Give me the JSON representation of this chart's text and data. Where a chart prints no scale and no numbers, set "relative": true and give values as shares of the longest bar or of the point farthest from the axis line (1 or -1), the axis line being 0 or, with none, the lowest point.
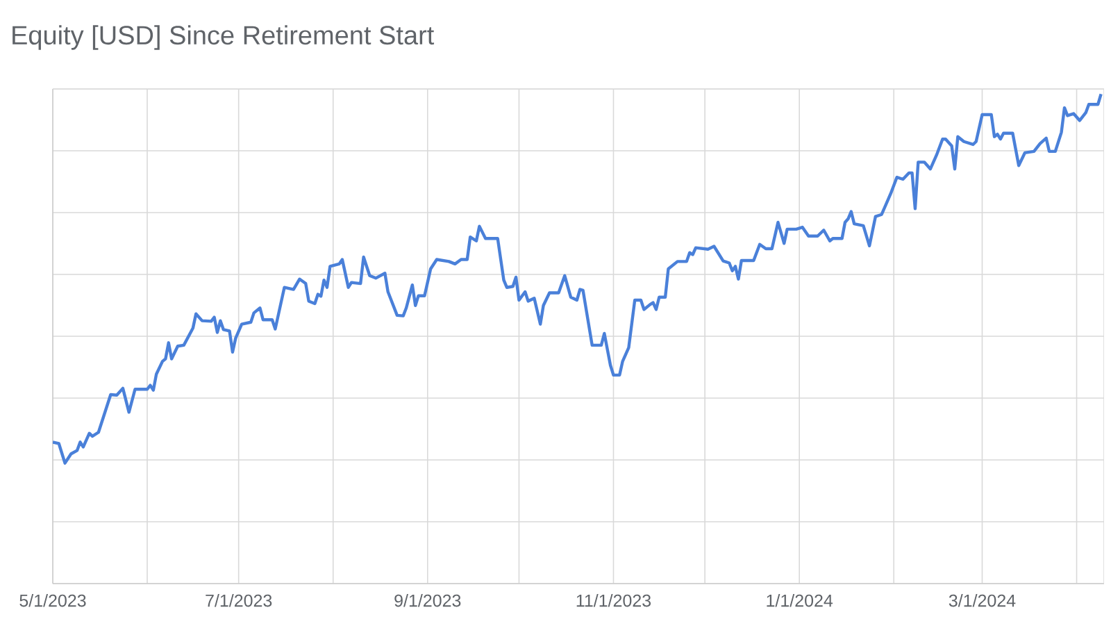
{
  "chart_data": {
    "type": "line",
    "title": "Equity [USD] Since Retirement Start",
    "relative": true,
    "grid": true,
    "color": "#4a80d9",
    "xlim": [
      "2023-05-01",
      "2024-04-10"
    ],
    "xticks": [
      {
        "value": "2023-05-01",
        "label": "5/1/2023"
      },
      {
        "value": "2023-06-01",
        "label": null
      },
      {
        "value": "2023-07-01",
        "label": "7/1/2023"
      },
      {
        "value": "2023-08-01",
        "label": null
      },
      {
        "value": "2023-09-01",
        "label": "9/1/2023"
      },
      {
        "value": "2023-10-01",
        "label": null
      },
      {
        "value": "2023-11-01",
        "label": "11/1/2023"
      },
      {
        "value": "2023-12-01",
        "label": null
      },
      {
        "value": "2024-01-01",
        "label": "1/1/2024"
      },
      {
        "value": "2024-02-01",
        "label": null
      },
      {
        "value": "2024-03-01",
        "label": "3/1/2024"
      },
      {
        "value": "2024-04-01",
        "label": null
      }
    ],
    "x": [
      "2023-05-01",
      "2023-05-03",
      "2023-05-05",
      "2023-05-07",
      "2023-05-09",
      "2023-05-10",
      "2023-05-11",
      "2023-05-13",
      "2023-05-14",
      "2023-05-16",
      "2023-05-20",
      "2023-05-22",
      "2023-05-24",
      "2023-05-26",
      "2023-05-28",
      "2023-06-01",
      "2023-06-02",
      "2023-06-03",
      "2023-06-04",
      "2023-06-06",
      "2023-06-07",
      "2023-06-08",
      "2023-06-09",
      "2023-06-11",
      "2023-06-13",
      "2023-06-16",
      "2023-06-17",
      "2023-06-19",
      "2023-06-22",
      "2023-06-23",
      "2023-06-24",
      "2023-06-25",
      "2023-06-26",
      "2023-06-28",
      "2023-06-29",
      "2023-06-30",
      "2023-07-02",
      "2023-07-05",
      "2023-07-06",
      "2023-07-08",
      "2023-07-09",
      "2023-07-12",
      "2023-07-13",
      "2023-07-16",
      "2023-07-19",
      "2023-07-21",
      "2023-07-23",
      "2023-07-24",
      "2023-07-26",
      "2023-07-27",
      "2023-07-28",
      "2023-07-29",
      "2023-07-30",
      "2023-07-31",
      "2023-08-03",
      "2023-08-04",
      "2023-08-06",
      "2023-08-07",
      "2023-08-10",
      "2023-08-11",
      "2023-08-13",
      "2023-08-15",
      "2023-08-18",
      "2023-08-19",
      "2023-08-22",
      "2023-08-24",
      "2023-08-25",
      "2023-08-27",
      "2023-08-28",
      "2023-08-29",
      "2023-08-31",
      "2023-09-02",
      "2023-09-04",
      "2023-09-08",
      "2023-09-10",
      "2023-09-12",
      "2023-09-14",
      "2023-09-15",
      "2023-09-17",
      "2023-09-18",
      "2023-09-20",
      "2023-09-24",
      "2023-09-26",
      "2023-09-27",
      "2023-09-29",
      "2023-09-30",
      "2023-10-01",
      "2023-10-03",
      "2023-10-04",
      "2023-10-06",
      "2023-10-08",
      "2023-10-09",
      "2023-10-11",
      "2023-10-14",
      "2023-10-16",
      "2023-10-18",
      "2023-10-20",
      "2023-10-21",
      "2023-10-22",
      "2023-10-25",
      "2023-10-28",
      "2023-10-29",
      "2023-10-31",
      "2023-11-01",
      "2023-11-03",
      "2023-11-04",
      "2023-11-06",
      "2023-11-08",
      "2023-11-10",
      "2023-11-11",
      "2023-11-13",
      "2023-11-14",
      "2023-11-15",
      "2023-11-16",
      "2023-11-18",
      "2023-11-19",
      "2023-11-22",
      "2023-11-25",
      "2023-11-26",
      "2023-11-27",
      "2023-11-28",
      "2023-12-02",
      "2023-12-04",
      "2023-12-07",
      "2023-12-09",
      "2023-12-10",
      "2023-12-11",
      "2023-12-12",
      "2023-12-13",
      "2023-12-17",
      "2023-12-19",
      "2023-12-21",
      "2023-12-23",
      "2023-12-25",
      "2023-12-27",
      "2023-12-28",
      "2023-12-31",
      "2024-01-02",
      "2024-01-04",
      "2024-01-07",
      "2024-01-09",
      "2024-01-11",
      "2024-01-12",
      "2024-01-15",
      "2024-01-16",
      "2024-01-17",
      "2024-01-18",
      "2024-01-19",
      "2024-01-22",
      "2024-01-24",
      "2024-01-26",
      "2024-01-28",
      "2024-01-31",
      "2024-02-02",
      "2024-02-04",
      "2024-02-06",
      "2024-02-07",
      "2024-02-08",
      "2024-02-09",
      "2024-02-11",
      "2024-02-13",
      "2024-02-15",
      "2024-02-17",
      "2024-02-18",
      "2024-02-20",
      "2024-02-21",
      "2024-02-22",
      "2024-02-24",
      "2024-02-27",
      "2024-02-28",
      "2024-03-01",
      "2024-03-04",
      "2024-03-05",
      "2024-03-06",
      "2024-03-07",
      "2024-03-08",
      "2024-03-11",
      "2024-03-13",
      "2024-03-15",
      "2024-03-18",
      "2024-03-20",
      "2024-03-22",
      "2024-03-23",
      "2024-03-25",
      "2024-03-27",
      "2024-03-28",
      "2024-03-29",
      "2024-03-31",
      "2024-04-02",
      "2024-04-04",
      "2024-04-05",
      "2024-04-08",
      "2024-04-09"
    ],
    "values": [
      0.289,
      0.286,
      0.246,
      0.265,
      0.272,
      0.289,
      0.279,
      0.307,
      0.301,
      0.309,
      0.386,
      0.385,
      0.399,
      0.35,
      0.397,
      0.397,
      0.405,
      0.395,
      0.428,
      0.454,
      0.459,
      0.492,
      0.459,
      0.485,
      0.487,
      0.522,
      0.551,
      0.537,
      0.536,
      0.544,
      0.513,
      0.537,
      0.519,
      0.516,
      0.473,
      0.501,
      0.53,
      0.534,
      0.553,
      0.563,
      0.539,
      0.539,
      0.52,
      0.605,
      0.601,
      0.622,
      0.613,
      0.577,
      0.572,
      0.591,
      0.587,
      0.62,
      0.605,
      0.648,
      0.653,
      0.662,
      0.605,
      0.615,
      0.613,
      0.667,
      0.629,
      0.624,
      0.634,
      0.596,
      0.548,
      0.547,
      0.563,
      0.61,
      0.568,
      0.588,
      0.588,
      0.643,
      0.662,
      0.658,
      0.653,
      0.662,
      0.662,
      0.708,
      0.7,
      0.73,
      0.705,
      0.705,
      0.62,
      0.605,
      0.607,
      0.626,
      0.579,
      0.596,
      0.577,
      0.583,
      0.53,
      0.568,
      0.594,
      0.594,
      0.629,
      0.585,
      0.579,
      0.601,
      0.599,
      0.487,
      0.487,
      0.511,
      0.446,
      0.426,
      0.426,
      0.454,
      0.482,
      0.579,
      0.579,
      0.56,
      0.57,
      0.574,
      0.56,
      0.585,
      0.585,
      0.643,
      0.658,
      0.658,
      0.676,
      0.672,
      0.686,
      0.683,
      0.689,
      0.659,
      0.655,
      0.639,
      0.648,
      0.622,
      0.66,
      0.66,
      0.693,
      0.684,
      0.684,
      0.738,
      0.695,
      0.724,
      0.724,
      0.728,
      0.71,
      0.71,
      0.722,
      0.7,
      0.705,
      0.705,
      0.738,
      0.745,
      0.76,
      0.735,
      0.731,
      0.69,
      0.75,
      0.754,
      0.797,
      0.83,
      0.826,
      0.839,
      0.839,
      0.766,
      0.861,
      0.861,
      0.847,
      0.875,
      0.908,
      0.908,
      0.894,
      0.847,
      0.913,
      0.903,
      0.897,
      0.903,
      0.958,
      0.958,
      0.913,
      0.918,
      0.908,
      0.92,
      0.92,
      0.854,
      0.88,
      0.883,
      0.899,
      0.91,
      0.883,
      0.883,
      0.922,
      0.972,
      0.956,
      0.96,
      0.946,
      0.962,
      0.979,
      0.979,
      1.0
    ]
  }
}
